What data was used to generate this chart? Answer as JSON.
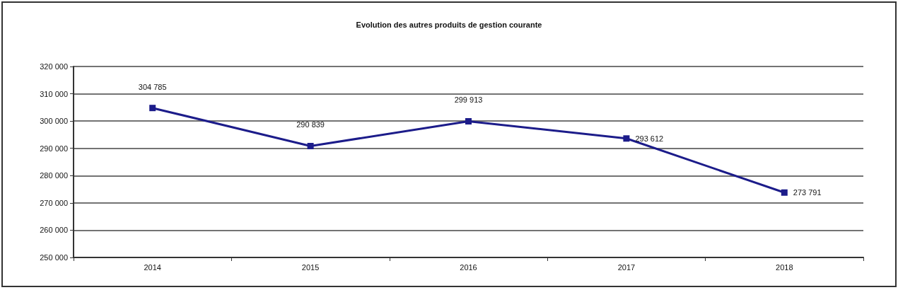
{
  "chart_data": {
    "type": "line",
    "title": "Evolution des autres produits de gestion courante",
    "categories": [
      "2014",
      "2015",
      "2016",
      "2017",
      "2018"
    ],
    "series": [
      {
        "color": "#1c1c8a",
        "values": [
          304785,
          290839,
          299913,
          293612,
          273791
        ]
      }
    ],
    "ylim": [
      250000,
      320000
    ],
    "yticks": [
      {
        "value": 250000,
        "label": "250 000"
      },
      {
        "value": 260000,
        "label": "260 000"
      },
      {
        "value": 270000,
        "label": "270 000"
      },
      {
        "value": 280000,
        "label": "280 000"
      },
      {
        "value": 290000,
        "label": "290 000"
      },
      {
        "value": 300000,
        "label": "300 000"
      },
      {
        "value": 310000,
        "label": "310 000"
      },
      {
        "value": 320000,
        "label": "320 000"
      }
    ],
    "grid": "y",
    "marker": "square",
    "data_labels": true
  }
}
